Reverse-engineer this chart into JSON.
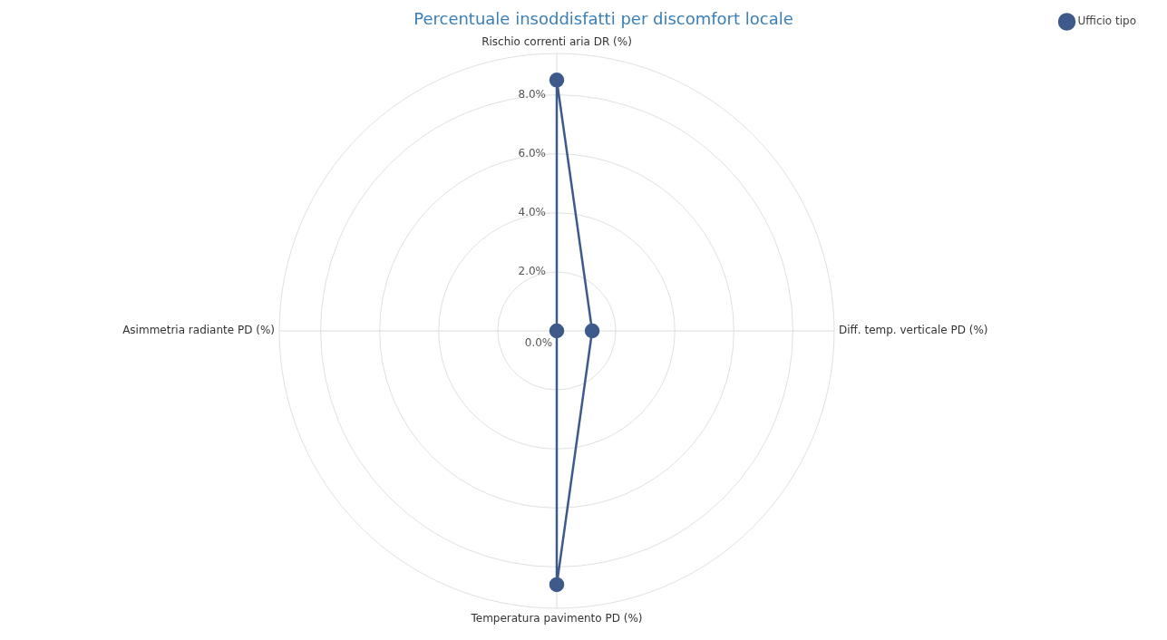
{
  "chart_data": {
    "type": "radar",
    "title": "Percentuale insoddisfatti per discomfort locale",
    "categories": [
      "Rischio correnti aria DR (%)",
      "Diff. temp. verticale PD (%)",
      "Temperatura pavimento PD (%)",
      "Asimmetria radiante PD (%)"
    ],
    "series": [
      {
        "name": "Ufficio tipo",
        "color": "#3d5a8a",
        "values": [
          8.5,
          1.2,
          8.6,
          0
        ]
      }
    ],
    "ylim": [
      0,
      9.4
    ],
    "yticks": [
      {
        "value": 0,
        "label": "0.0%"
      },
      {
        "value": 2,
        "label": "2.0%"
      },
      {
        "value": 4,
        "label": "4.0%"
      },
      {
        "value": 6,
        "label": "6.0%"
      },
      {
        "value": 8,
        "label": "8.0%"
      }
    ],
    "grid": true,
    "legend": "top right",
    "marker": "circle"
  }
}
